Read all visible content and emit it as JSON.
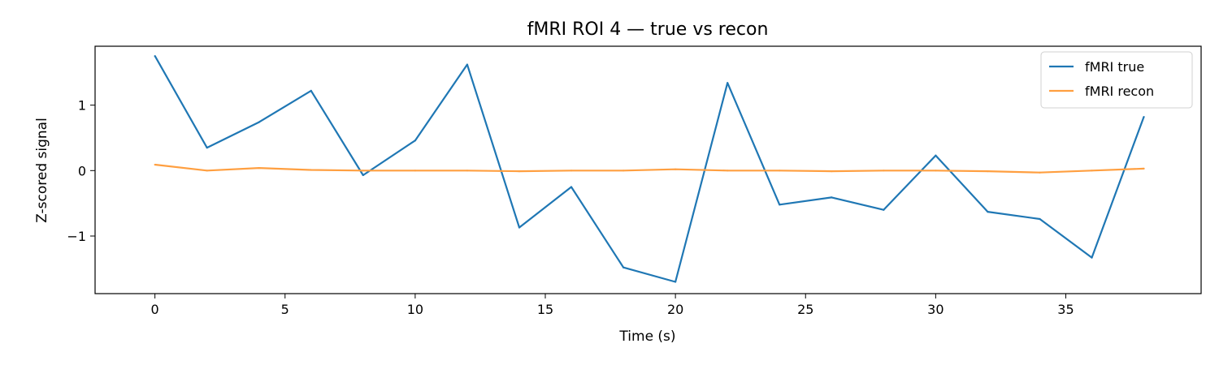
{
  "chart_data": {
    "type": "line",
    "title": "fMRI ROI 4 — true vs recon",
    "xlabel": "Time (s)",
    "ylabel": "Z-scored signal",
    "xlim": [
      -2.3,
      40.2
    ],
    "ylim": [
      -1.88,
      1.9
    ],
    "xticks": [
      0,
      5,
      10,
      15,
      20,
      25,
      30,
      35
    ],
    "yticks": [
      -1,
      0,
      1
    ],
    "ytick_labels": [
      "−1",
      "0",
      "1"
    ],
    "grid": false,
    "legend_position": "top-right",
    "x": [
      0,
      2,
      4,
      6,
      8,
      10,
      12,
      14,
      16,
      18,
      20,
      22,
      24,
      26,
      28,
      30,
      32,
      34,
      36,
      38
    ],
    "series": [
      {
        "name": "fMRI true",
        "color": "#1f77b4",
        "values": [
          1.75,
          0.35,
          0.74,
          1.22,
          -0.07,
          0.46,
          1.62,
          -0.87,
          -0.25,
          -1.48,
          -1.7,
          1.34,
          -0.52,
          -0.41,
          -0.6,
          0.23,
          -0.63,
          -0.74,
          -1.33,
          0.82
        ]
      },
      {
        "name": "fMRI recon",
        "color": "#ff9f40",
        "values": [
          0.09,
          0.0,
          0.04,
          0.01,
          0.0,
          0.0,
          0.0,
          -0.01,
          0.0,
          0.0,
          0.02,
          0.0,
          0.0,
          -0.01,
          0.0,
          0.0,
          -0.01,
          -0.03,
          0.0,
          0.03
        ]
      }
    ]
  }
}
